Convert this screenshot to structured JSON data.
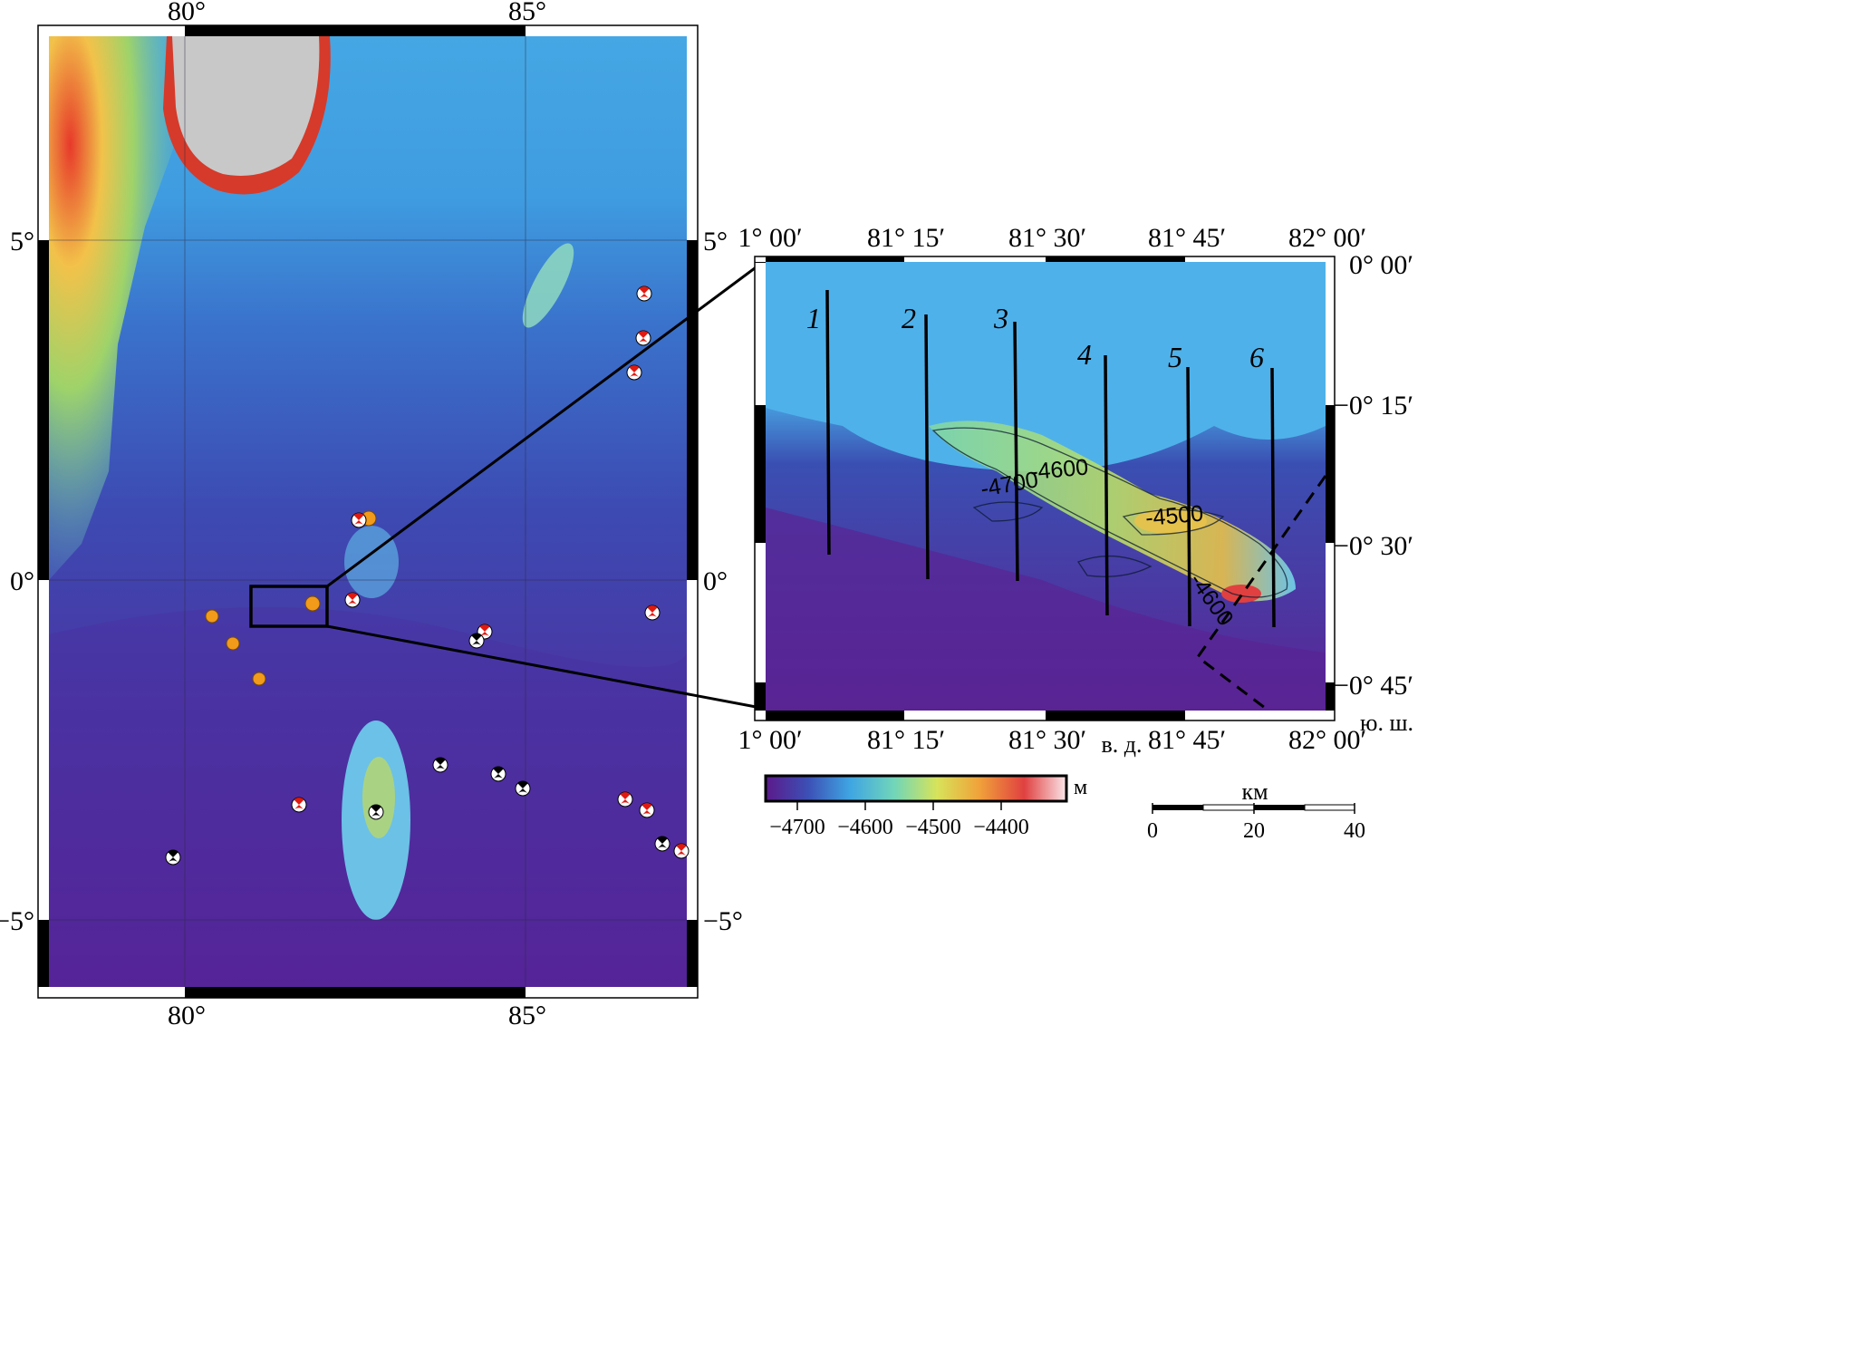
{
  "main_map": {
    "lon_labels": [
      "80°",
      "85°"
    ],
    "lat_labels_left": [
      "5°",
      "0°",
      "−5°"
    ],
    "lat_labels_right": [
      "5°",
      "0°",
      "−5°"
    ],
    "bathymetry_colors": {
      "deep": "#5a1f92",
      "abyss": "#4a3aa8",
      "mid": "#3f6fcb",
      "shallow": "#3fa8e6",
      "ridge": "#6fd2ee",
      "high": "#e23a2a",
      "land": "#c8c8c8"
    },
    "mechanism_colors": {
      "red": "#e01a10",
      "black": "#000000",
      "orange": "#f29a1a"
    }
  },
  "inset_map": {
    "top_lon_labels": [
      "1° 00′",
      "81° 15′",
      "81° 30′",
      "81° 45′",
      "82° 00′"
    ],
    "bottom_lon_labels": [
      "1° 00′",
      "81° 15′",
      "81° 30′",
      "81° 45′",
      "82° 00′"
    ],
    "lat_labels": [
      "0° 00′",
      "−0° 15′",
      "−0° 30′",
      "−0° 45′"
    ],
    "lon_unit": "в. д.",
    "lat_unit": "ю. ш.",
    "profiles": [
      "1",
      "2",
      "3",
      "4",
      "5",
      "6"
    ],
    "contour_labels": [
      "-4600",
      "-4700",
      "-4500",
      "-4600"
    ]
  },
  "color_scale": {
    "unit": "м",
    "ticks": [
      "−4700",
      "−4600",
      "−4500",
      "−4400"
    ],
    "colors": [
      "#5b1a8a",
      "#3c4fb5",
      "#3fa5e2",
      "#72d6b8",
      "#d7e35a",
      "#f0a23a",
      "#e04040",
      "#fbe6ea"
    ]
  },
  "scale_bar": {
    "unit": "км",
    "ticks": [
      "0",
      "20",
      "40"
    ]
  }
}
